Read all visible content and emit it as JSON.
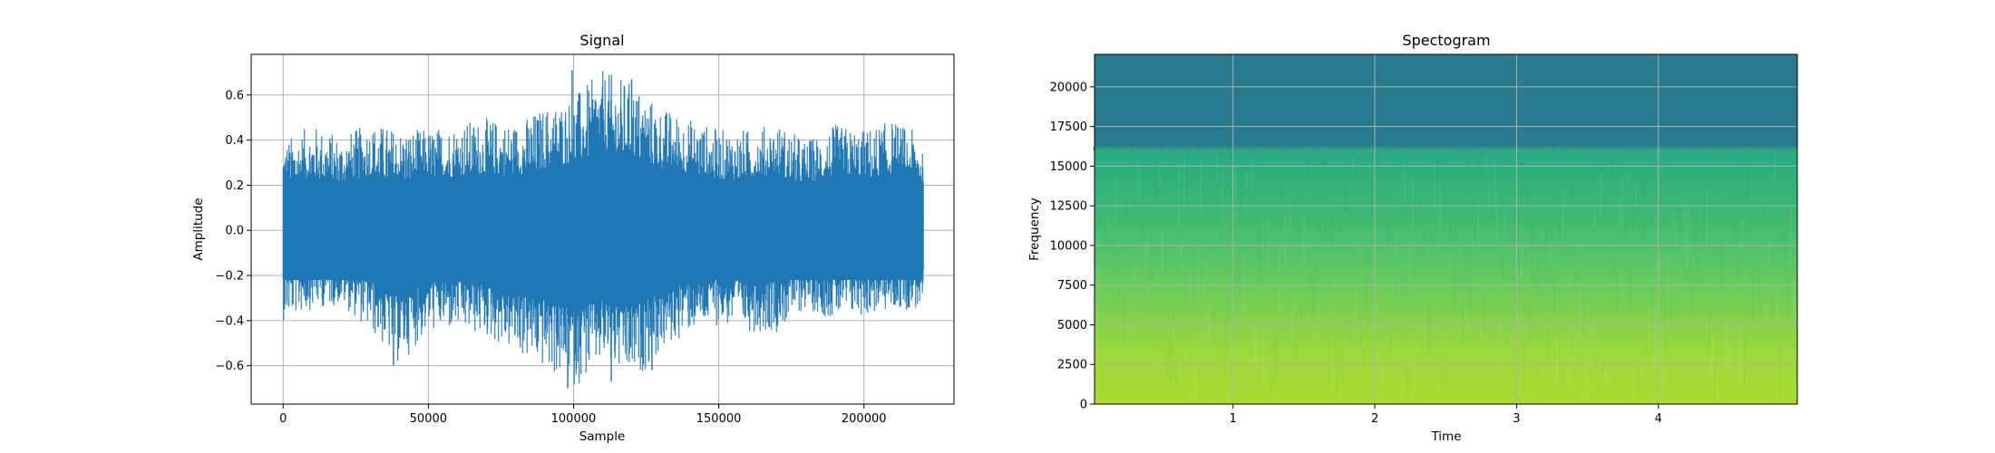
{
  "chart_data": [
    {
      "type": "line",
      "title": "Signal",
      "xlabel": "Sample",
      "ylabel": "Amplitude",
      "xlim": [
        -11000,
        231000
      ],
      "ylim": [
        -0.77,
        0.78
      ],
      "xticks": [
        0,
        50000,
        100000,
        150000,
        200000
      ],
      "xtick_labels": [
        "0",
        "50000",
        "100000",
        "150000",
        "200000"
      ],
      "yticks": [
        -0.6,
        -0.4,
        -0.2,
        0.0,
        0.2,
        0.4,
        0.6
      ],
      "ytick_labels": [
        "−0.6",
        "−0.4",
        "−0.2",
        "0.0",
        "0.2",
        "0.4",
        "0.6"
      ],
      "grid": true,
      "series": [
        {
          "color": "#1f77b4",
          "x_range": [
            0,
            220500
          ],
          "envelope_x": [
            0,
            10000,
            20000,
            30000,
            40000,
            50000,
            60000,
            70000,
            80000,
            90000,
            100000,
            110000,
            120000,
            130000,
            140000,
            150000,
            160000,
            170000,
            180000,
            190000,
            200000,
            210000,
            220500
          ],
          "envelope_max": [
            0.4,
            0.47,
            0.42,
            0.48,
            0.45,
            0.45,
            0.48,
            0.5,
            0.48,
            0.55,
            0.6,
            0.71,
            0.66,
            0.55,
            0.5,
            0.45,
            0.45,
            0.48,
            0.4,
            0.47,
            0.45,
            0.49,
            0.42
          ],
          "envelope_min": [
            -0.4,
            -0.35,
            -0.33,
            -0.45,
            -0.6,
            -0.45,
            -0.45,
            -0.48,
            -0.55,
            -0.62,
            -0.7,
            -0.6,
            -0.68,
            -0.55,
            -0.45,
            -0.42,
            -0.45,
            -0.45,
            -0.35,
            -0.4,
            -0.38,
            -0.36,
            -0.35
          ],
          "peaks": [
            {
              "x": 99500,
              "y": 0.71
            },
            {
              "x": 120000,
              "y": 0.67
            },
            {
              "x": 98000,
              "y": -0.7
            },
            {
              "x": 113000,
              "y": -0.67
            },
            {
              "x": 38000,
              "y": -0.6
            },
            {
              "x": 127000,
              "y": -0.62
            }
          ]
        }
      ]
    },
    {
      "type": "heatmap",
      "title": "Spectogram",
      "xlabel": "Time",
      "ylabel": "Frequency",
      "xlim": [
        0.023,
        4.98
      ],
      "ylim": [
        0,
        22050
      ],
      "xticks": [
        1,
        2,
        3,
        4
      ],
      "xtick_labels": [
        "1",
        "2",
        "3",
        "4"
      ],
      "yticks": [
        0,
        2500,
        5000,
        7500,
        10000,
        12500,
        15000,
        17500,
        20000
      ],
      "ytick_labels": [
        "0",
        "2500",
        "5000",
        "7500",
        "10000",
        "12500",
        "15000",
        "17500",
        "20000"
      ],
      "grid": true,
      "colormap": "viridis",
      "cutoff_frequency": 16000,
      "intensity_profile": [
        {
          "frequency": 0,
          "value": 0.88
        },
        {
          "frequency": 3000,
          "value": 0.86
        },
        {
          "frequency": 6000,
          "value": 0.8
        },
        {
          "frequency": 9000,
          "value": 0.74
        },
        {
          "frequency": 12000,
          "value": 0.68
        },
        {
          "frequency": 15000,
          "value": 0.64
        },
        {
          "frequency": 16000,
          "value": 0.62
        },
        {
          "frequency": 16300,
          "value": 0.42
        },
        {
          "frequency": 22050,
          "value": 0.42
        }
      ]
    }
  ]
}
